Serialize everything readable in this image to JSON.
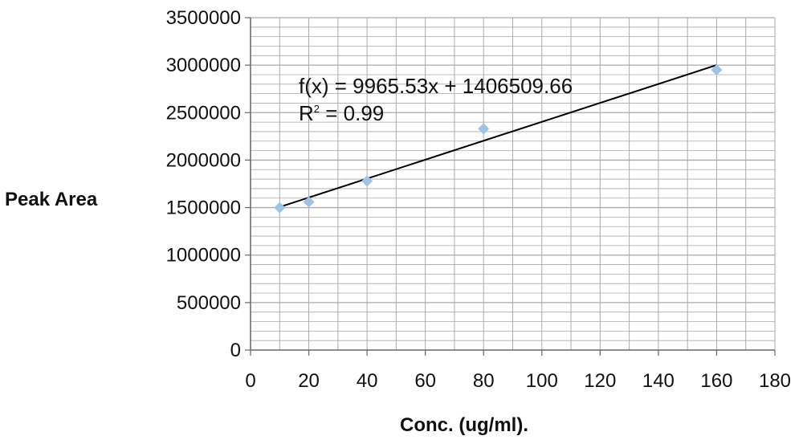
{
  "chart_data": {
    "type": "scatter",
    "xlabel": "Conc. (ug/ml).",
    "ylabel": "Peak Area",
    "xlim": [
      0,
      180
    ],
    "ylim": [
      0,
      3500000
    ],
    "x_ticks": [
      0,
      20,
      40,
      60,
      80,
      100,
      120,
      140,
      160,
      180
    ],
    "y_ticks": [
      0,
      500000,
      1000000,
      1500000,
      2000000,
      2500000,
      3000000,
      3500000
    ],
    "grid": true,
    "minor_grid": true,
    "series": [
      {
        "points": [
          {
            "x": 10,
            "y": 1500000
          },
          {
            "x": 20,
            "y": 1560000
          },
          {
            "x": 40,
            "y": 1780000
          },
          {
            "x": 80,
            "y": 2330000
          },
          {
            "x": 160,
            "y": 2950000
          }
        ],
        "color": "#9DC3E6",
        "marker": "diamond"
      }
    ],
    "trendline": {
      "slope": 9965.53,
      "intercept": 1406509.66,
      "x_start": 10,
      "x_end": 160,
      "color": "#000000"
    },
    "annotations": {
      "equation": "f(x) = 9965.53x + 1406509.66",
      "r_squared_prefix": "R",
      "r_squared_sup": "2",
      "r_squared_suffix": " = 0.99"
    },
    "colors": {
      "grid": "#aaaaaa",
      "marker": "#9DC3E6",
      "trendline": "#000000"
    }
  }
}
